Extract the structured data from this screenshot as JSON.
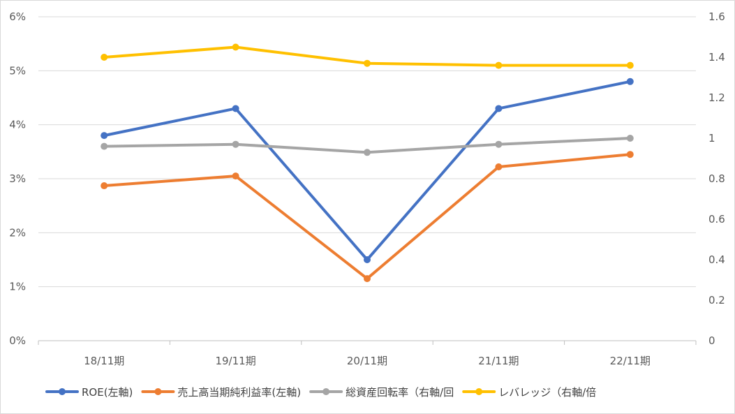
{
  "chart_data": {
    "type": "line",
    "categories": [
      "18/11期",
      "19/11期",
      "20/11期",
      "21/11期",
      "22/11期"
    ],
    "left_axis": {
      "ylim": [
        0,
        6
      ],
      "ticks": [
        "0%",
        "1%",
        "2%",
        "3%",
        "4%",
        "5%",
        "6%"
      ]
    },
    "right_axis": {
      "ylim": [
        0,
        1.6
      ],
      "ticks": [
        "0",
        "0.2",
        "0.4",
        "0.6",
        "0.8",
        "1",
        "1.2",
        "1.4",
        "1.6"
      ]
    },
    "grid": true,
    "legend_position": "bottom",
    "series": [
      {
        "name": "ROE(左軸)",
        "axis": "left",
        "color": "#4472c4",
        "values": [
          3.8,
          4.3,
          1.5,
          4.3,
          4.8
        ]
      },
      {
        "name": "売上高当期純利益率(左軸)",
        "axis": "left",
        "color": "#ed7d31",
        "values": [
          2.87,
          3.05,
          1.15,
          3.22,
          3.45
        ]
      },
      {
        "name": "総資産回転率（右軸/回",
        "axis": "right",
        "color": "#a5a5a5",
        "values": [
          0.96,
          0.97,
          0.93,
          0.97,
          1.0
        ]
      },
      {
        "name": "レバレッジ（右軸/倍",
        "axis": "right",
        "color": "#ffc000",
        "values": [
          1.4,
          1.45,
          1.37,
          1.36,
          1.36
        ]
      }
    ]
  }
}
